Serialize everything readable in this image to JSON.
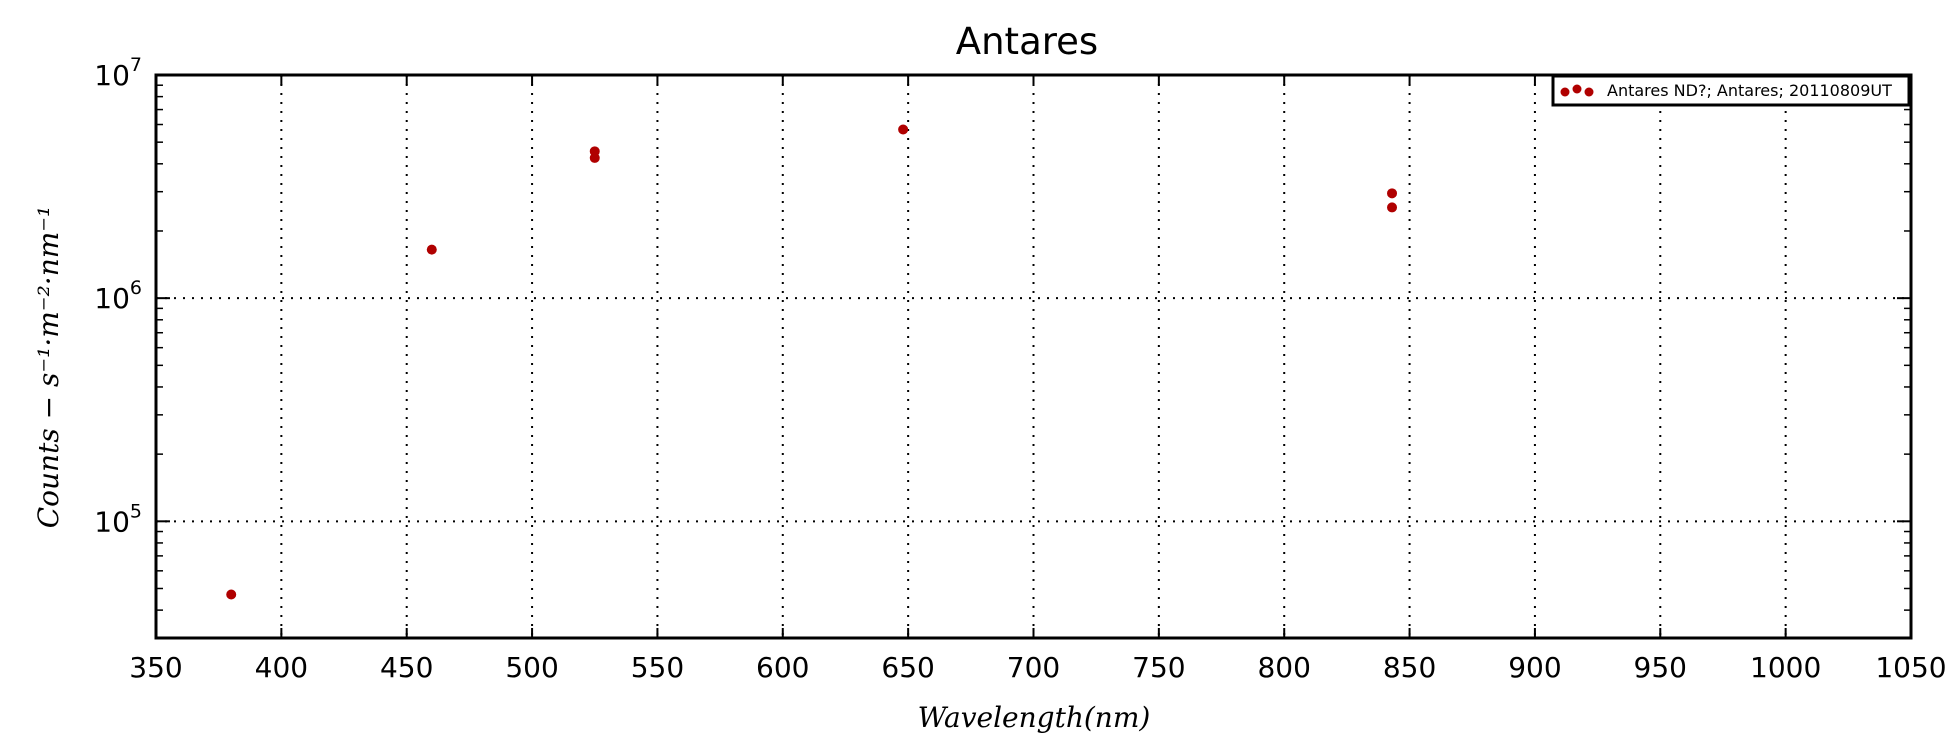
{
  "chart_data": {
    "type": "scatter",
    "title": "Antares",
    "xlabel": "Wavelength(nm)",
    "ylabel": "Counts − s⁻¹·m⁻²·nm⁻¹",
    "xlim": [
      350,
      1050
    ],
    "ylim": [
      30000,
      10000000
    ],
    "y_scale": "log",
    "x_ticks": [
      350,
      400,
      450,
      500,
      550,
      600,
      650,
      700,
      750,
      800,
      850,
      900,
      950,
      1000,
      1050
    ],
    "y_ticks": [
      {
        "value": 100000,
        "label_base": "10",
        "label_exp": "5"
      },
      {
        "value": 1000000,
        "label_base": "10",
        "label_exp": "6"
      },
      {
        "value": 10000000,
        "label_base": "10",
        "label_exp": "7"
      }
    ],
    "grid": true,
    "legend_position": "upper-right",
    "series": [
      {
        "name": "Antares ND?; Antares; 20110809UT",
        "color": "#b00000",
        "marker": "circle",
        "points": [
          {
            "x": 380,
            "y": 47000
          },
          {
            "x": 460,
            "y": 1650000
          },
          {
            "x": 525,
            "y": 4550000
          },
          {
            "x": 525,
            "y": 4250000
          },
          {
            "x": 648,
            "y": 5700000
          },
          {
            "x": 843,
            "y": 2950000
          },
          {
            "x": 843,
            "y": 2550000
          }
        ]
      }
    ]
  }
}
